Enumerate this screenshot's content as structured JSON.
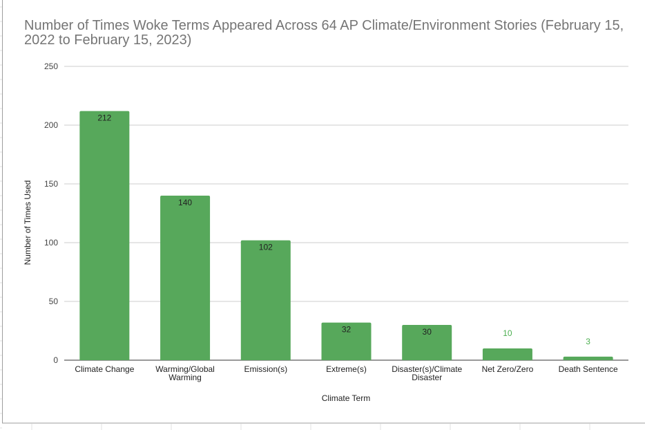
{
  "chart_data": {
    "type": "bar",
    "title": "Number of Times Woke Terms Appeared Across 64 AP Climate/Environment Stories (February 15, 2022 to February 15, 2023)",
    "xlabel": "Climate Term",
    "ylabel": "Number of Times Used",
    "categories": [
      "Climate Change",
      "Warming/Global Warming",
      "Emission(s)",
      "Extreme(s)",
      "Disaster(s)/Climate Disaster",
      "Net Zero/Zero",
      "Death Sentence"
    ],
    "category_lines": [
      [
        "Climate Change"
      ],
      [
        "Warming/Global",
        "Warming"
      ],
      [
        "Emission(s)"
      ],
      [
        "Extreme(s)"
      ],
      [
        "Disaster(s)/Climate",
        "Disaster"
      ],
      [
        "Net Zero/Zero"
      ],
      [
        "Death Sentence"
      ]
    ],
    "values": [
      212,
      140,
      102,
      32,
      30,
      10,
      3
    ],
    "data_labels": [
      "212",
      "140",
      "102",
      "32",
      "30",
      "10",
      "3"
    ],
    "ylim": [
      0,
      250
    ],
    "yticks": [
      0,
      50,
      100,
      150,
      200,
      250
    ],
    "grid": true,
    "legend": "none",
    "bar_color": "#57a85b",
    "label_color": "#222222",
    "outside_label_color": "#4caf50"
  }
}
